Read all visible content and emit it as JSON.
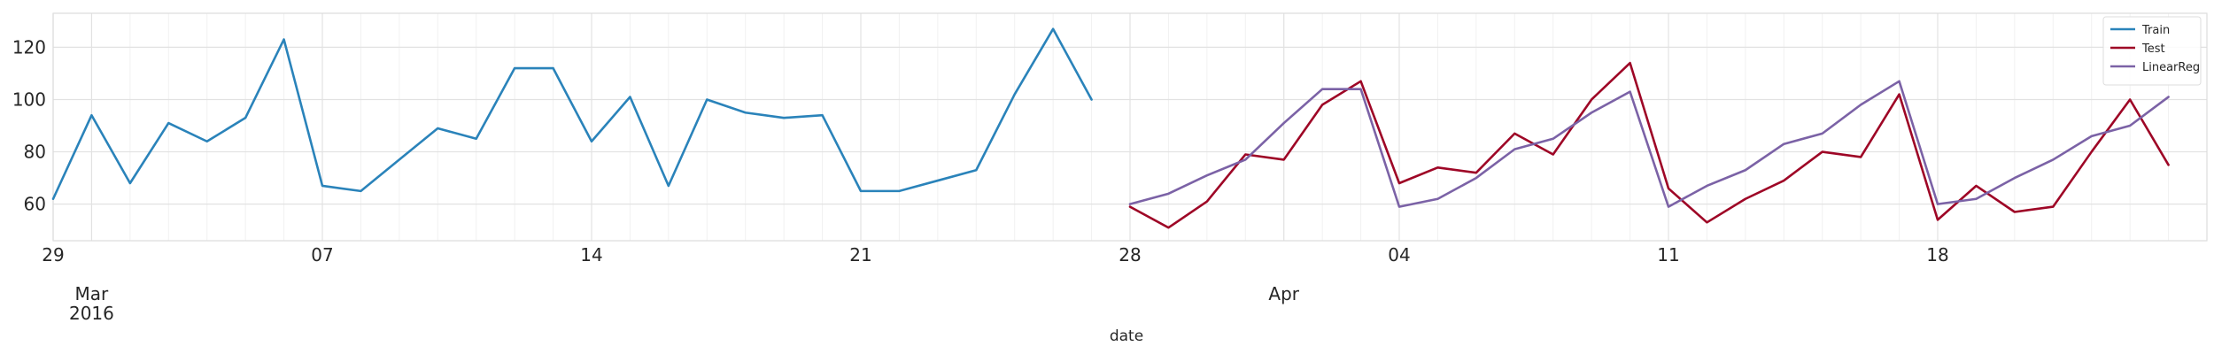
{
  "chart_data": {
    "type": "line",
    "xlabel": "date",
    "ylabel": "",
    "ylim": [
      46,
      133
    ],
    "xlim": [
      "2016-02-29",
      "2016-04-25"
    ],
    "grid": true,
    "legend_position": "top-right",
    "y_ticks": [
      60,
      80,
      100,
      120
    ],
    "x_ticks": [
      {
        "date": "2016-02-29",
        "label": "29"
      },
      {
        "date": "2016-03-07",
        "label": "07"
      },
      {
        "date": "2016-03-14",
        "label": "14"
      },
      {
        "date": "2016-03-21",
        "label": "21"
      },
      {
        "date": "2016-03-28",
        "label": "28"
      },
      {
        "date": "2016-04-04",
        "label": "04"
      },
      {
        "date": "2016-04-11",
        "label": "11"
      },
      {
        "date": "2016-04-18",
        "label": "18"
      }
    ],
    "major_x_ticks": [
      {
        "date": "2016-03-01",
        "label": "Mar",
        "sublabel": "2016"
      },
      {
        "date": "2016-04-01",
        "label": "Apr",
        "sublabel": ""
      }
    ],
    "series": [
      {
        "name": "Train",
        "color": "#2a83ba",
        "points": [
          [
            "2016-02-29",
            62
          ],
          [
            "2016-03-01",
            94
          ],
          [
            "2016-03-02",
            68
          ],
          [
            "2016-03-03",
            91
          ],
          [
            "2016-03-04",
            84
          ],
          [
            "2016-03-05",
            93
          ],
          [
            "2016-03-06",
            123
          ],
          [
            "2016-03-07",
            67
          ],
          [
            "2016-03-08",
            65
          ],
          [
            "2016-03-09",
            77
          ],
          [
            "2016-03-10",
            89
          ],
          [
            "2016-03-11",
            85
          ],
          [
            "2016-03-12",
            112
          ],
          [
            "2016-03-13",
            112
          ],
          [
            "2016-03-14",
            84
          ],
          [
            "2016-03-15",
            101
          ],
          [
            "2016-03-16",
            67
          ],
          [
            "2016-03-17",
            100
          ],
          [
            "2016-03-18",
            95
          ],
          [
            "2016-03-19",
            93
          ],
          [
            "2016-03-20",
            94
          ],
          [
            "2016-03-21",
            65
          ],
          [
            "2016-03-22",
            65
          ],
          [
            "2016-03-23",
            69
          ],
          [
            "2016-03-24",
            73
          ],
          [
            "2016-03-25",
            102
          ],
          [
            "2016-03-26",
            127
          ],
          [
            "2016-03-27",
            100
          ]
        ]
      },
      {
        "name": "Test",
        "color": "#9e0626",
        "points": [
          [
            "2016-03-28",
            59
          ],
          [
            "2016-03-29",
            51
          ],
          [
            "2016-03-30",
            61
          ],
          [
            "2016-03-31",
            79
          ],
          [
            "2016-04-01",
            77
          ],
          [
            "2016-04-02",
            98
          ],
          [
            "2016-04-03",
            107
          ],
          [
            "2016-04-04",
            68
          ],
          [
            "2016-04-05",
            74
          ],
          [
            "2016-04-06",
            72
          ],
          [
            "2016-04-07",
            87
          ],
          [
            "2016-04-08",
            79
          ],
          [
            "2016-04-09",
            100
          ],
          [
            "2016-04-10",
            114
          ],
          [
            "2016-04-11",
            66
          ],
          [
            "2016-04-12",
            53
          ],
          [
            "2016-04-13",
            62
          ],
          [
            "2016-04-14",
            69
          ],
          [
            "2016-04-15",
            80
          ],
          [
            "2016-04-16",
            78
          ],
          [
            "2016-04-17",
            102
          ],
          [
            "2016-04-18",
            54
          ],
          [
            "2016-04-19",
            67
          ],
          [
            "2016-04-20",
            57
          ],
          [
            "2016-04-21",
            59
          ],
          [
            "2016-04-22",
            80
          ],
          [
            "2016-04-23",
            100
          ],
          [
            "2016-04-24",
            75
          ]
        ]
      },
      {
        "name": "LinearReg",
        "color": "#7b62a6",
        "points": [
          [
            "2016-03-28",
            60
          ],
          [
            "2016-03-29",
            64
          ],
          [
            "2016-03-30",
            71
          ],
          [
            "2016-03-31",
            77
          ],
          [
            "2016-04-01",
            91
          ],
          [
            "2016-04-02",
            104
          ],
          [
            "2016-04-03",
            104
          ],
          [
            "2016-04-04",
            59
          ],
          [
            "2016-04-05",
            62
          ],
          [
            "2016-04-06",
            70
          ],
          [
            "2016-04-07",
            81
          ],
          [
            "2016-04-08",
            85
          ],
          [
            "2016-04-09",
            95
          ],
          [
            "2016-04-10",
            103
          ],
          [
            "2016-04-11",
            59
          ],
          [
            "2016-04-12",
            67
          ],
          [
            "2016-04-13",
            73
          ],
          [
            "2016-04-14",
            83
          ],
          [
            "2016-04-15",
            87
          ],
          [
            "2016-04-16",
            98
          ],
          [
            "2016-04-17",
            107
          ],
          [
            "2016-04-18",
            60
          ],
          [
            "2016-04-19",
            62
          ],
          [
            "2016-04-20",
            70
          ],
          [
            "2016-04-21",
            77
          ],
          [
            "2016-04-22",
            86
          ],
          [
            "2016-04-23",
            90
          ],
          [
            "2016-04-24",
            101
          ]
        ]
      }
    ]
  }
}
